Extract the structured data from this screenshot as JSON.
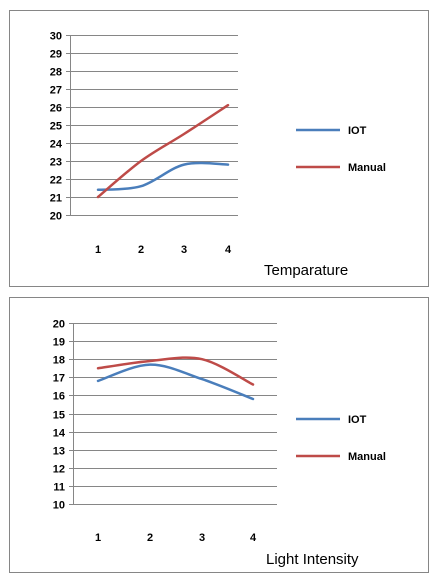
{
  "colors": {
    "iot": "#4a7ebb",
    "manual": "#be4b48",
    "grid": "#868686",
    "frame": "#868686"
  },
  "chart_data": [
    {
      "type": "line",
      "title": "",
      "xlabel": "Temparature",
      "ylabel": "",
      "categories": [
        "1",
        "2",
        "3",
        "4"
      ],
      "ylim": [
        20,
        30
      ],
      "yticks": [
        20,
        21,
        22,
        23,
        24,
        25,
        26,
        27,
        28,
        29,
        30
      ],
      "grid": true,
      "legend_position": "right",
      "series": [
        {
          "name": "IOT",
          "color": "#4a7ebb",
          "values": [
            21.4,
            21.6,
            22.8,
            22.8
          ]
        },
        {
          "name": "Manual",
          "color": "#be4b48",
          "values": [
            21.0,
            23.0,
            24.5,
            26.1
          ]
        }
      ]
    },
    {
      "type": "line",
      "title": "",
      "xlabel": "Light Intensity",
      "ylabel": "",
      "categories": [
        "1",
        "2",
        "3",
        "4"
      ],
      "ylim": [
        10,
        20
      ],
      "yticks": [
        10,
        11,
        12,
        13,
        14,
        15,
        16,
        17,
        18,
        19,
        20
      ],
      "grid": true,
      "legend_position": "right",
      "series": [
        {
          "name": "IOT",
          "color": "#4a7ebb",
          "values": [
            16.8,
            17.7,
            16.9,
            15.8
          ]
        },
        {
          "name": "Manual",
          "color": "#be4b48",
          "values": [
            17.5,
            17.9,
            18.0,
            16.6
          ]
        }
      ]
    }
  ]
}
